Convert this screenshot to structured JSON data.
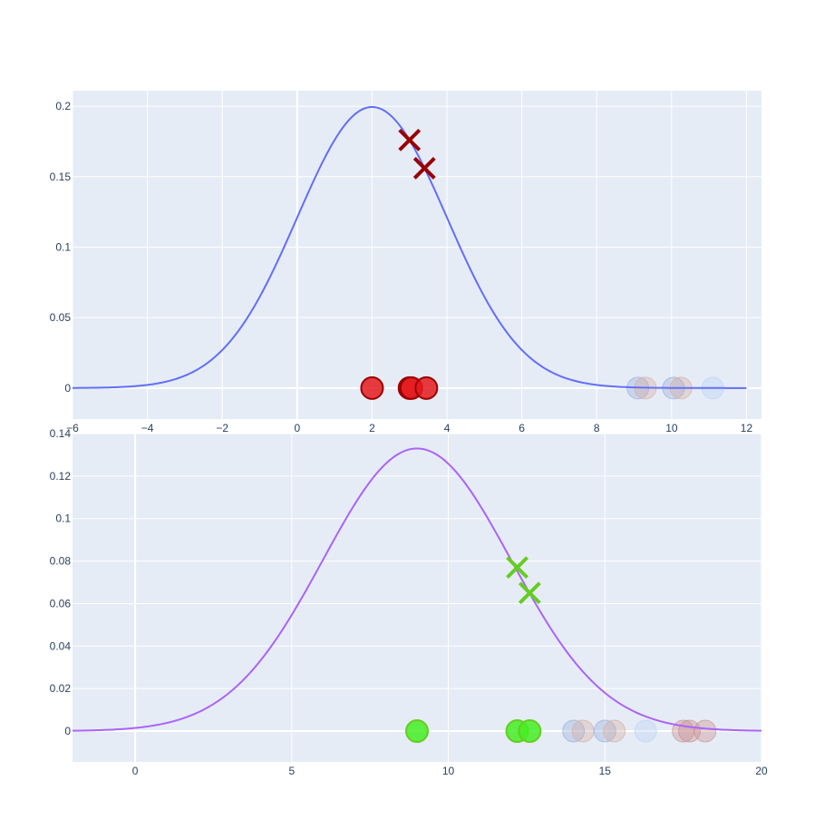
{
  "chart_data": [
    {
      "type": "line",
      "xlim": [
        -6,
        12.4
      ],
      "ylim": [
        -0.022,
        0.211
      ],
      "xticks": [
        -6,
        -4,
        -2,
        0,
        2,
        4,
        6,
        8,
        10,
        12
      ],
      "xtick_labels": [
        "−6",
        "−4",
        "−2",
        "0",
        "2",
        "4",
        "6",
        "8",
        "10",
        "12"
      ],
      "yticks": [
        0,
        0.05,
        0.1,
        0.15,
        0.2
      ],
      "ytick_labels": [
        "0",
        "0.05",
        "0.1",
        "0.15",
        "0.2"
      ],
      "grid": true,
      "legend": "none",
      "curve": {
        "kind": "normal_pdf",
        "mean": 2,
        "std": 2,
        "x_range": [
          -6,
          12
        ],
        "color": "#636efa"
      },
      "markers_x": {
        "x": [
          3,
          3.4
        ],
        "y": [
          0.176,
          0.156
        ],
        "color": "#990000"
      },
      "points_solid": {
        "x": [
          2,
          3,
          3.05,
          3.45
        ],
        "y": [
          0,
          0,
          0,
          0
        ],
        "fill": "#e41a1c",
        "stroke": "#990000"
      },
      "points_faded": [
        {
          "x": 9.1,
          "color": "#8fa8d8"
        },
        {
          "x": 9.3,
          "color": "#d8a89a"
        },
        {
          "x": 10.05,
          "color": "#8fa8d8"
        },
        {
          "x": 10.25,
          "color": "#d8a89a"
        },
        {
          "x": 11.1,
          "color": "#b8d0f4"
        }
      ]
    },
    {
      "type": "line",
      "xlim": [
        -2,
        20
      ],
      "ylim": [
        -0.0145,
        0.14
      ],
      "xticks": [
        0,
        5,
        10,
        15,
        20
      ],
      "xtick_labels": [
        "0",
        "5",
        "10",
        "15",
        "20"
      ],
      "yticks": [
        0,
        0.02,
        0.04,
        0.06,
        0.08,
        0.1,
        0.12,
        0.14
      ],
      "ytick_labels": [
        "0",
        "0.02",
        "0.04",
        "0.06",
        "0.08",
        "0.1",
        "0.12",
        "0.14"
      ],
      "grid": true,
      "legend": "none",
      "curve": {
        "kind": "normal_pdf",
        "mean": 9,
        "std": 3,
        "x_range": [
          -2,
          20
        ],
        "color": "#ab63fa"
      },
      "markers_x": {
        "x": [
          12.2,
          12.6
        ],
        "y": [
          0.077,
          0.065
        ],
        "color": "#66cc22"
      },
      "points_solid": {
        "x": [
          9,
          12.2,
          12.6
        ],
        "y": [
          0,
          0,
          0
        ],
        "fill": "#44ee22",
        "stroke": "#66cc22"
      },
      "points_faded": [
        {
          "x": 14,
          "color": "#8fa8d8"
        },
        {
          "x": 14.3,
          "color": "#d8a89a"
        },
        {
          "x": 15,
          "color": "#8fa8d8"
        },
        {
          "x": 15.3,
          "color": "#d8a89a"
        },
        {
          "x": 16.3,
          "color": "#b8d0f4"
        },
        {
          "x": 17.5,
          "color": "#c88888"
        },
        {
          "x": 17.7,
          "color": "#c88888"
        },
        {
          "x": 18.2,
          "color": "#c88888"
        }
      ]
    }
  ]
}
